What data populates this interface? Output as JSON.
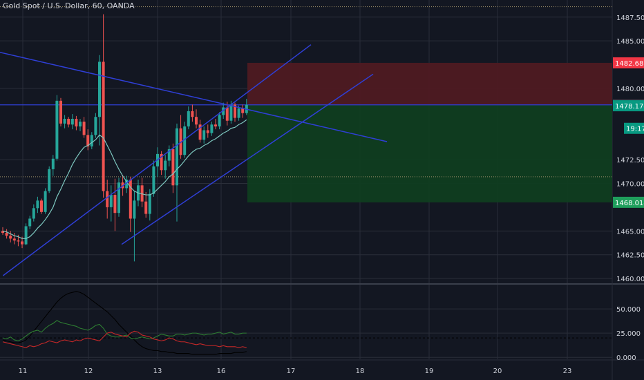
{
  "header": {
    "title": "Gold Spot / U.S. Dollar, 60, OANDA"
  },
  "colors": {
    "background": "#131722",
    "grid": "#2a2e39",
    "up": "#26a69a",
    "down": "#ef5350",
    "trendline": "#2f3fd6",
    "ma": "#7ec8c0",
    "stop_zone": "#4e1a22",
    "target_zone": "#0f3d20",
    "price_red": "#f23645",
    "price_green": "#089981",
    "axis_text": "#d1d4dc",
    "adx_line": "#000000",
    "plus_di": "#2e7d32",
    "minus_di": "#c62828"
  },
  "chart_data": [
    {
      "type": "candlestick",
      "title": "Gold Spot / U.S. Dollar, 60, OANDA",
      "x_tick_labels": [
        "11",
        "12",
        "13",
        "16",
        "17",
        "18",
        "19",
        "20",
        "23"
      ],
      "y_tick_labels": [
        "1487.500",
        "1485.000",
        "1480.000",
        "1472.500",
        "1470.000",
        "1465.000",
        "1462.500",
        "1460.000"
      ],
      "ylim": [
        1459.5,
        1489.3
      ],
      "grid": true,
      "candles": [
        [
          1465.0,
          1465.4,
          1464.6,
          1464.8
        ],
        [
          1464.8,
          1465.2,
          1464.2,
          1464.5
        ],
        [
          1464.5,
          1465.0,
          1463.8,
          1464.2
        ],
        [
          1464.2,
          1464.8,
          1463.6,
          1464.0
        ],
        [
          1464.0,
          1464.6,
          1463.4,
          1463.9
        ],
        [
          1463.9,
          1464.4,
          1463.2,
          1463.6
        ],
        [
          1463.6,
          1465.8,
          1463.5,
          1465.5
        ],
        [
          1465.5,
          1466.6,
          1465.2,
          1466.3
        ],
        [
          1466.3,
          1467.8,
          1466.0,
          1467.4
        ],
        [
          1467.4,
          1468.6,
          1466.9,
          1468.2
        ],
        [
          1468.2,
          1468.4,
          1466.8,
          1467.0
        ],
        [
          1467.0,
          1469.5,
          1466.8,
          1469.2
        ],
        [
          1469.2,
          1471.8,
          1469.0,
          1471.5
        ],
        [
          1471.5,
          1473.0,
          1470.8,
          1472.6
        ],
        [
          1472.6,
          1479.3,
          1472.4,
          1478.7
        ],
        [
          1478.7,
          1479.0,
          1476.0,
          1476.3
        ],
        [
          1476.3,
          1477.2,
          1475.8,
          1476.8
        ],
        [
          1476.8,
          1477.0,
          1475.9,
          1476.2
        ],
        [
          1476.2,
          1477.3,
          1475.7,
          1476.8
        ],
        [
          1476.8,
          1477.1,
          1475.6,
          1476.0
        ],
        [
          1476.0,
          1476.8,
          1475.5,
          1476.5
        ],
        [
          1476.5,
          1477.0,
          1474.8,
          1475.1
        ],
        [
          1475.1,
          1475.7,
          1473.5,
          1473.9
        ],
        [
          1473.9,
          1475.4,
          1473.6,
          1475.1
        ],
        [
          1475.1,
          1477.4,
          1474.8,
          1477.0
        ],
        [
          1477.0,
          1483.5,
          1474.0,
          1482.8
        ],
        [
          1482.8,
          1487.8,
          1468.5,
          1469.2
        ],
        [
          1469.2,
          1470.4,
          1466.3,
          1467.5
        ],
        [
          1467.5,
          1469.8,
          1466.0,
          1468.8
        ],
        [
          1468.8,
          1470.5,
          1465.0,
          1466.9
        ],
        [
          1466.9,
          1470.6,
          1466.5,
          1470.1
        ],
        [
          1470.1,
          1470.9,
          1468.7,
          1469.5
        ],
        [
          1469.5,
          1470.8,
          1469.0,
          1470.4
        ],
        [
          1470.4,
          1470.7,
          1464.9,
          1466.3
        ],
        [
          1466.3,
          1469.2,
          1461.8,
          1468.2
        ],
        [
          1468.2,
          1470.4,
          1467.6,
          1469.8
        ],
        [
          1469.8,
          1470.6,
          1467.5,
          1468.1
        ],
        [
          1468.1,
          1469.1,
          1466.4,
          1466.8
        ],
        [
          1466.8,
          1469.4,
          1466.1,
          1468.9
        ],
        [
          1468.9,
          1472.4,
          1468.6,
          1471.8
        ],
        [
          1471.8,
          1473.8,
          1470.7,
          1473.1
        ],
        [
          1473.1,
          1473.4,
          1470.9,
          1471.4
        ],
        [
          1471.4,
          1473.0,
          1470.5,
          1472.4
        ],
        [
          1472.4,
          1474.0,
          1471.8,
          1473.6
        ],
        [
          1473.6,
          1474.2,
          1469.0,
          1469.8
        ],
        [
          1469.8,
          1476.3,
          1466.0,
          1475.8
        ],
        [
          1475.8,
          1477.2,
          1472.6,
          1473.0
        ],
        [
          1473.0,
          1476.5,
          1472.7,
          1476.0
        ],
        [
          1476.0,
          1478.1,
          1475.7,
          1477.6
        ],
        [
          1477.6,
          1478.3,
          1476.5,
          1477.0
        ],
        [
          1477.0,
          1477.8,
          1475.8,
          1476.2
        ],
        [
          1476.2,
          1476.7,
          1474.3,
          1474.6
        ],
        [
          1474.6,
          1476.0,
          1474.2,
          1475.6
        ],
        [
          1475.6,
          1476.2,
          1474.8,
          1475.3
        ],
        [
          1475.3,
          1476.5,
          1475.0,
          1476.2
        ],
        [
          1476.2,
          1476.8,
          1475.7,
          1476.0
        ],
        [
          1476.0,
          1477.5,
          1475.7,
          1477.2
        ],
        [
          1477.2,
          1478.5,
          1476.8,
          1478.0
        ],
        [
          1478.0,
          1478.6,
          1476.1,
          1476.6
        ],
        [
          1476.6,
          1478.7,
          1476.3,
          1478.3
        ],
        [
          1478.3,
          1478.5,
          1476.5,
          1476.9
        ],
        [
          1476.9,
          1478.2,
          1476.6,
          1477.9
        ],
        [
          1477.9,
          1478.3,
          1476.9,
          1477.4
        ],
        [
          1477.4,
          1478.9,
          1477.2,
          1478.27
        ]
      ],
      "moving_average": [
        1465.0,
        1464.9,
        1464.7,
        1464.5,
        1464.4,
        1464.2,
        1464.2,
        1464.4,
        1464.8,
        1465.3,
        1465.7,
        1466.2,
        1466.8,
        1467.5,
        1468.6,
        1469.4,
        1470.3,
        1471.1,
        1472.0,
        1472.7,
        1473.3,
        1473.8,
        1474.0,
        1474.3,
        1474.6,
        1475.1,
        1474.8,
        1474.0,
        1473.2,
        1472.3,
        1471.5,
        1470.8,
        1470.2,
        1469.6,
        1469.2,
        1469.0,
        1468.9,
        1468.8,
        1468.8,
        1469.0,
        1469.4,
        1469.8,
        1470.2,
        1470.7,
        1471.0,
        1471.5,
        1471.9,
        1472.4,
        1472.9,
        1473.3,
        1473.6,
        1473.7,
        1474.0,
        1474.2,
        1474.5,
        1474.7,
        1475.0,
        1475.3,
        1475.5,
        1475.8,
        1475.9,
        1476.2,
        1476.4,
        1476.7
      ],
      "trendlines": [
        {
          "x1_day": 10.4,
          "y1": 1484.2,
          "x2_day": 18.4,
          "y2": 1474.4
        },
        {
          "x1_day": 10.7,
          "y1": 1460.3,
          "x2_day": 17.3,
          "y2": 1484.6
        },
        {
          "x1_day": 12.5,
          "y1": 1463.6,
          "x2_day": 18.2,
          "y2": 1481.5
        }
      ],
      "horizontal_lines": [
        {
          "y": 1478.271,
          "style": "solid"
        },
        {
          "y": 1488.6,
          "style": "dotted"
        },
        {
          "y": 1470.7,
          "style": "dotted"
        }
      ],
      "position_tool": {
        "x_start_day": 16.38,
        "x_end_day": 23.6,
        "entry": 1478.271,
        "stop": 1482.689,
        "target": 1468.014
      },
      "price_labels": [
        {
          "label": "1482.689",
          "value": 1482.689,
          "color": "red"
        },
        {
          "label": "1478.271",
          "value": 1478.271,
          "color": "dark"
        },
        {
          "label": "1478.174",
          "value": 1478.174,
          "color": "teal"
        },
        {
          "label": "19:17",
          "value": 1475.8,
          "color": "teal"
        },
        {
          "label": "1468.014",
          "value": 1468.014,
          "color": "green"
        }
      ]
    },
    {
      "type": "line",
      "title": "",
      "y_tick_labels": [
        "50.000",
        "25.000",
        "0.000"
      ],
      "ylim": [
        -2,
        75
      ],
      "reference_level": 20,
      "series": [
        {
          "key": "adx",
          "values": [
            18,
            17,
            16,
            15,
            15,
            16,
            18,
            22,
            27,
            32,
            37,
            42,
            47,
            52,
            57,
            61,
            64,
            66,
            67,
            68,
            67,
            65,
            62,
            59,
            56,
            53,
            50,
            47,
            43,
            39,
            34,
            30,
            26,
            22,
            18,
            14,
            11,
            9,
            8,
            7,
            7,
            6,
            6,
            5,
            5,
            4,
            4,
            4,
            4,
            3,
            3,
            3,
            3,
            3,
            3,
            3,
            4,
            4,
            4,
            4,
            5,
            5,
            5,
            6
          ]
        },
        {
          "key": "plus_di",
          "values": [
            20,
            19,
            21,
            18,
            17,
            19,
            22,
            25,
            27,
            28,
            26,
            30,
            33,
            35,
            38,
            36,
            35,
            34,
            33,
            32,
            30,
            29,
            28,
            30,
            33,
            34,
            30,
            24,
            22,
            21,
            21,
            22,
            23,
            20,
            19,
            20,
            21,
            20,
            19,
            20,
            22,
            24,
            23,
            22,
            22,
            24,
            24,
            23,
            24,
            25,
            25,
            24,
            23,
            24,
            24,
            25,
            26,
            24,
            25,
            26,
            24,
            24,
            25,
            25
          ]
        },
        {
          "key": "minus_di",
          "values": [
            16,
            15,
            14,
            13,
            12,
            11,
            10,
            12,
            11,
            12,
            14,
            15,
            17,
            16,
            15,
            17,
            18,
            17,
            16,
            18,
            17,
            19,
            20,
            19,
            18,
            17,
            21,
            25,
            26,
            24,
            23,
            22,
            21,
            25,
            27,
            26,
            23,
            22,
            21,
            19,
            18,
            17,
            18,
            20,
            19,
            17,
            16,
            16,
            15,
            14,
            13,
            14,
            13,
            12,
            12,
            12,
            11,
            12,
            11,
            11,
            11,
            10,
            11,
            10
          ]
        }
      ]
    }
  ]
}
